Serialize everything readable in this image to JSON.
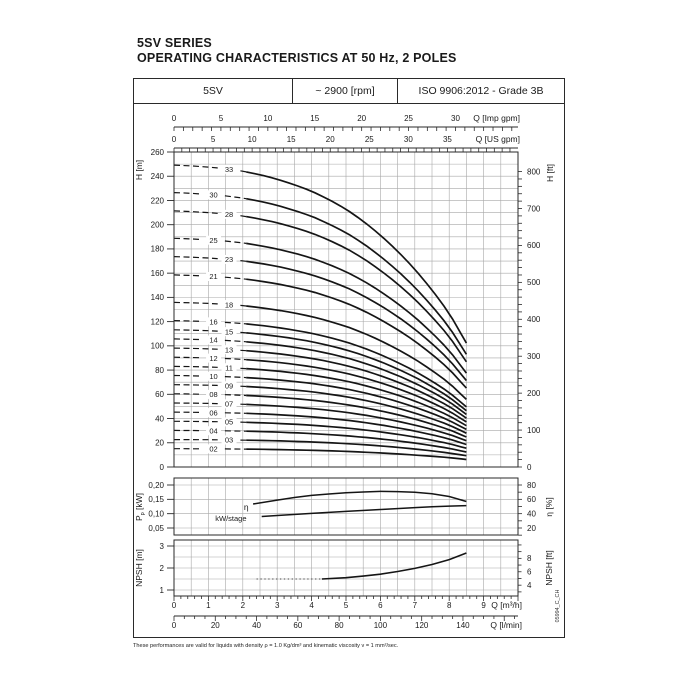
{
  "title": {
    "line1": "5SV SERIES",
    "line2": "OPERATING CHARACTERISTICS AT 50 Hz, 2 POLES"
  },
  "header": {
    "model": "5SV",
    "speed": "~ 2900 [rpm]",
    "standard": "ISO 9906:2012 - Grade 3B"
  },
  "footer": {
    "note": "These performances are valid for liquids with density ρ = 1.0 Kg/dm³ and kinematic viscosity ν = 1 mm²/sec."
  },
  "side_code": "05994_C_CH",
  "chart_data": {
    "type": "line",
    "q_unit": "m³/h",
    "q_max": 10,
    "flow_axes": [
      {
        "id": "imp_gpm",
        "label": "Q [Imp gpm]",
        "labeled_ticks": [
          0,
          5,
          10,
          15,
          20,
          25,
          30
        ],
        "minor_step": 1,
        "max_tick": 36,
        "m3h_per_unit": 0.27276
      },
      {
        "id": "us_gpm",
        "label": "Q [US gpm]",
        "labeled_ticks": [
          0,
          5,
          10,
          15,
          20,
          25,
          30,
          35
        ],
        "minor_step": 1,
        "max_tick": 43,
        "m3h_per_unit": 0.22712
      },
      {
        "id": "m3h",
        "label": "Q [m³/h]",
        "labeled_ticks": [
          0,
          1,
          2,
          3,
          4,
          5,
          6,
          7,
          8,
          9
        ],
        "minor_step": 0.2,
        "major_step": 1,
        "max_tick": 10,
        "m3h_per_unit": 1
      },
      {
        "id": "lmin",
        "label": "Q [l/min]",
        "labeled_ticks": [
          0,
          20,
          40,
          60,
          80,
          100,
          120,
          140
        ],
        "minor_step": 5,
        "major_step": 20,
        "max_tick": 165,
        "m3h_per_unit": 0.06
      }
    ],
    "head_chart": {
      "y_left": {
        "label": "H [m]",
        "min": 0,
        "max": 260,
        "tick_step": 20,
        "grid_step": 10
      },
      "y_right": {
        "label": "H [ft]",
        "max": 800,
        "tick_step": 20,
        "label_step": 100,
        "m_per_ft": 0.3048
      },
      "q_grid_step": 0.5,
      "dash_solid_transition_q": 2.1,
      "curve_end_q": 8.5,
      "per_stage_q": [
        0,
        0.5,
        1,
        1.5,
        2,
        2.5,
        3,
        3.5,
        4,
        4.5,
        5,
        5.5,
        6,
        6.5,
        7,
        7.5,
        8,
        8.5
      ],
      "per_stage_head_m": [
        7.55,
        7.53,
        7.5,
        7.46,
        7.4,
        7.31,
        7.2,
        7.06,
        6.9,
        6.69,
        6.45,
        6.15,
        5.8,
        5.4,
        4.95,
        4.43,
        3.85,
        3.1
      ],
      "stages": [
        {
          "label": "33",
          "n": 33,
          "label_q": 1.6
        },
        {
          "label": "30",
          "n": 30,
          "label_q": 1.15
        },
        {
          "label": "28",
          "n": 28,
          "label_q": 1.6
        },
        {
          "label": "25",
          "n": 25,
          "label_q": 1.15
        },
        {
          "label": "23",
          "n": 23,
          "label_q": 1.6
        },
        {
          "label": "21",
          "n": 21,
          "label_q": 1.15
        },
        {
          "label": "18",
          "n": 18,
          "label_q": 1.6
        },
        {
          "label": "16",
          "n": 16,
          "label_q": 1.15
        },
        {
          "label": "15",
          "n": 15,
          "label_q": 1.6
        },
        {
          "label": "14",
          "n": 14,
          "label_q": 1.15
        },
        {
          "label": "13",
          "n": 13,
          "label_q": 1.6
        },
        {
          "label": "12",
          "n": 12,
          "label_q": 1.15
        },
        {
          "label": "11",
          "n": 11,
          "label_q": 1.6
        },
        {
          "label": "10",
          "n": 10,
          "label_q": 1.15
        },
        {
          "label": "09",
          "n": 9,
          "label_q": 1.6
        },
        {
          "label": "08",
          "n": 8,
          "label_q": 1.15
        },
        {
          "label": "07",
          "n": 7,
          "label_q": 1.6
        },
        {
          "label": "06",
          "n": 6,
          "label_q": 1.15
        },
        {
          "label": "05",
          "n": 5,
          "label_q": 1.6
        },
        {
          "label": "04",
          "n": 4,
          "label_q": 1.15
        },
        {
          "label": "03",
          "n": 3,
          "label_q": 1.6
        },
        {
          "label": "02",
          "n": 2,
          "label_q": 1.15
        }
      ]
    },
    "power_chart": {
      "y_left": {
        "label_main": "P",
        "label_sub": "p",
        "label_unit": " [kW]",
        "tick_labels": [
          "0,20",
          "0,15",
          "0,10",
          "0,05"
        ],
        "tick_values": [
          0.2,
          0.15,
          0.1,
          0.05
        ]
      },
      "y_right": {
        "label": "η [%]",
        "tick_labels": [
          80,
          60,
          40,
          20
        ],
        "minor_step": 10
      },
      "eta_curve": {
        "label": "η",
        "q": [
          2.3,
          3,
          3.5,
          4,
          4.5,
          5,
          5.5,
          6,
          6.5,
          7,
          7.5,
          8,
          8.5
        ],
        "pct": [
          53.5,
          59,
          62.5,
          65.5,
          67.5,
          69.2,
          70.3,
          71,
          70.8,
          69.8,
          67.8,
          64,
          57
        ]
      },
      "kw_curve": {
        "label": "kW/stage",
        "q": [
          2.55,
          3,
          4,
          5,
          6,
          7,
          7.5,
          8,
          8.5
        ],
        "kw": [
          0.09,
          0.0935,
          0.101,
          0.108,
          0.1145,
          0.121,
          0.124,
          0.1265,
          0.128
        ]
      }
    },
    "npsh_chart": {
      "y_left": {
        "label": "NPSH [m]",
        "ticks": [
          1,
          2,
          3
        ],
        "grid_step": 0.5
      },
      "y_right": {
        "label": "NPSH [ft]",
        "ticks": [
          4,
          6,
          8
        ],
        "minor_step": 1,
        "m_per_ft": 0.3048
      },
      "flat_dotted": {
        "q": [
          2.4,
          4.3
        ],
        "m": [
          1.5,
          1.5
        ]
      },
      "curve": {
        "q": [
          4.3,
          5,
          5.5,
          6,
          6.5,
          7,
          7.5,
          8,
          8.5
        ],
        "m": [
          1.5,
          1.56,
          1.63,
          1.72,
          1.84,
          1.98,
          2.16,
          2.38,
          2.68
        ]
      }
    }
  }
}
